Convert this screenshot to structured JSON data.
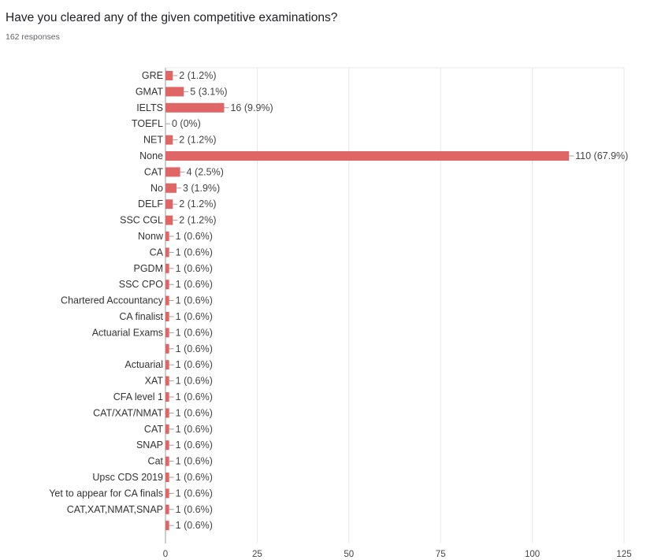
{
  "question": {
    "title": "Have you cleared any of the given competitive examinations?",
    "responses": "162 responses"
  },
  "chart_data": {
    "type": "bar",
    "orientation": "horizontal",
    "title": "Have you cleared any of the given competitive examinations?",
    "subtitle": "162 responses",
    "categories": [
      "GRE",
      "GMAT",
      "IELTS",
      "TOEFL",
      "NET",
      "None",
      "CAT",
      "No",
      "DELF",
      "SSC CGL",
      "Nonw",
      "CA",
      "PGDM",
      "SSC CPO",
      "Chartered Accountancy",
      "CA finalist",
      "Actuarial Exams",
      "",
      "Actuarial",
      "XAT",
      "CFA level 1",
      "CAT/XAT/NMAT",
      "CAT",
      "SNAP",
      "Cat",
      "Upsc CDS 2019",
      "Yet to appear for CA finals",
      "CAT,XAT,NMAT,SNAP",
      ""
    ],
    "values": [
      2,
      5,
      16,
      0,
      2,
      110,
      4,
      3,
      2,
      2,
      1,
      1,
      1,
      1,
      1,
      1,
      1,
      1,
      1,
      1,
      1,
      1,
      1,
      1,
      1,
      1,
      1,
      1,
      1
    ],
    "data_labels": [
      "2 (1.2%)",
      "5 (3.1%)",
      "16 (9.9%)",
      "0 (0%)",
      "2 (1.2%)",
      "110 (67.9%)",
      "4 (2.5%)",
      "3 (1.9%)",
      "2 (1.2%)",
      "2 (1.2%)",
      "1 (0.6%)",
      "1 (0.6%)",
      "1 (0.6%)",
      "1 (0.6%)",
      "1 (0.6%)",
      "1 (0.6%)",
      "1 (0.6%)",
      "1 (0.6%)",
      "1 (0.6%)",
      "1 (0.6%)",
      "1 (0.6%)",
      "1 (0.6%)",
      "1 (0.6%)",
      "1 (0.6%)",
      "1 (0.6%)",
      "1 (0.6%)",
      "1 (0.6%)",
      "1 (0.6%)",
      "1 (0.6%)"
    ],
    "xlim": [
      0,
      125
    ],
    "xticks": [
      0,
      25,
      50,
      75,
      100,
      125
    ],
    "grid": true,
    "bar_color": "#e06666"
  }
}
